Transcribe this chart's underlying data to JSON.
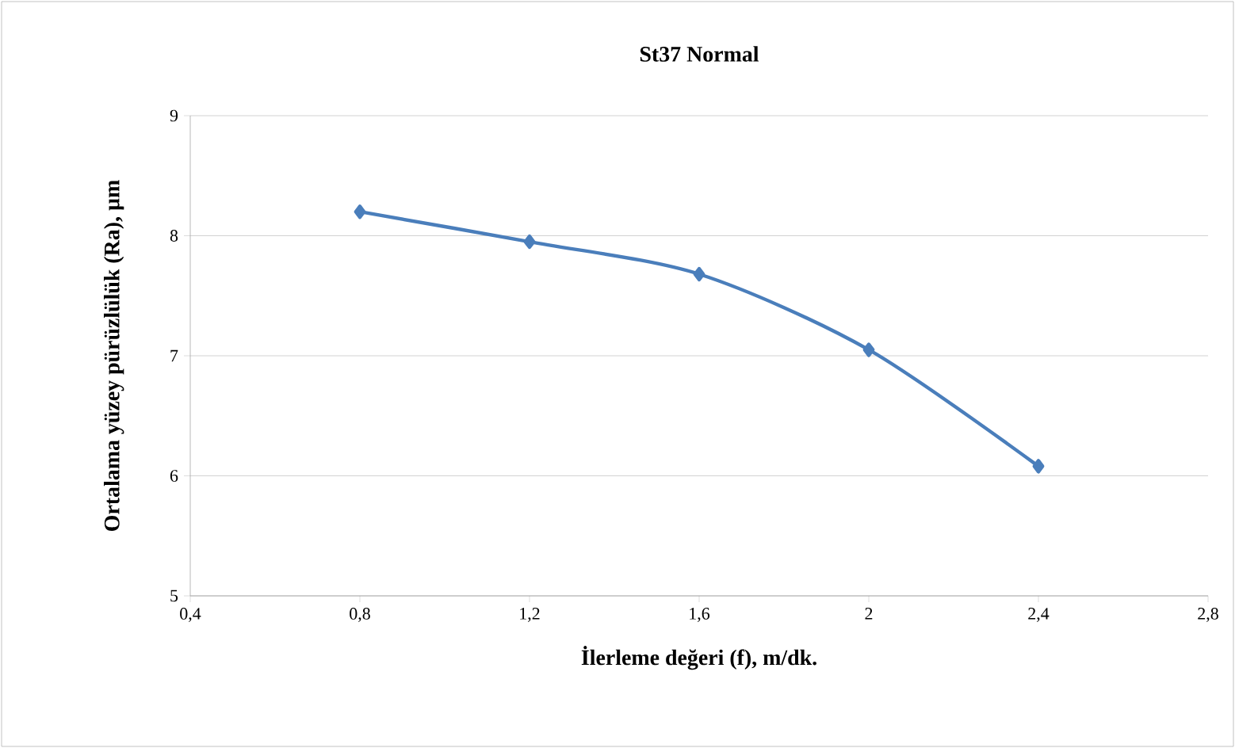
{
  "chart_data": {
    "type": "line",
    "title": "St37 Normal",
    "xlabel": "İlerleme değeri (f), m/dk.",
    "ylabel": "Ortalama yüzey pürüzlülük (Ra), µm",
    "x": [
      0.8,
      1.2,
      1.6,
      2.0,
      2.4
    ],
    "series": [
      {
        "color": "#4a7ebb",
        "values": [
          8.2,
          7.95,
          7.68,
          7.05,
          6.08
        ]
      }
    ],
    "xlim": [
      0.4,
      2.8
    ],
    "xticks": [
      {
        "value": 0.4,
        "label": "0,4"
      },
      {
        "value": 0.8,
        "label": "0,8"
      },
      {
        "value": 1.2,
        "label": "1,2"
      },
      {
        "value": 1.6,
        "label": "1,6"
      },
      2,
      {
        "value": 2.4,
        "label": "2,4"
      },
      {
        "value": 2.8,
        "label": "2,8"
      }
    ],
    "ylim": [
      5,
      9
    ],
    "yticks": [
      5,
      6,
      7,
      8,
      9
    ],
    "grid": "y",
    "marker": "diamond",
    "line_style": "solid"
  }
}
